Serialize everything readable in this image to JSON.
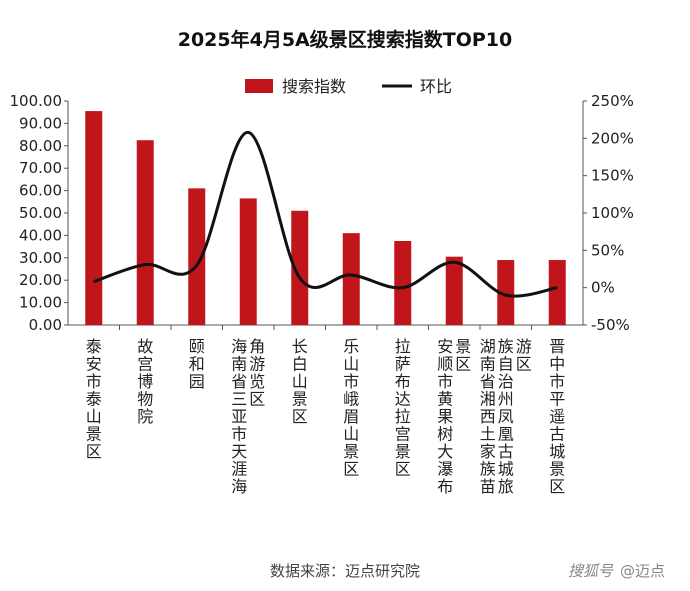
{
  "chart_data": {
    "type": "bar",
    "title": "2025年4月5A级景区搜索指数TOP10",
    "categories": [
      "泰安市泰山景区",
      "故宫博物院",
      "颐和园",
      "海南省三亚市天涯海角游览区",
      "长白山景区",
      "乐山市峨眉山景区",
      "拉萨布达拉宫景区",
      "安顺市黄果树大瀑布景区",
      "湖南省湘西土家族苗族自治州凤凰古城旅游区",
      "晋中市平遥古城景区"
    ],
    "category_lines": [
      [
        "泰安市泰山景区"
      ],
      [
        "故宫博物院"
      ],
      [
        "颐和园"
      ],
      [
        "海南省三亚市天涯海",
        "角游览区"
      ],
      [
        "长白山景区"
      ],
      [
        "乐山市峨眉山景区"
      ],
      [
        "拉萨布达拉宫景区"
      ],
      [
        "安顺市黄果树大瀑布",
        "景区"
      ],
      [
        "湖南省湘西土家族苗",
        "族自治州凤凰古城旅",
        "游区"
      ],
      [
        "晋中市平遥古城景区"
      ]
    ],
    "series": [
      {
        "name": "搜索指数",
        "type": "bar",
        "axis": "left",
        "color": "#c0161b",
        "values": [
          95.5,
          82.5,
          61.0,
          56.5,
          51.0,
          41.0,
          37.5,
          30.5,
          29.0,
          29.0
        ]
      },
      {
        "name": "环比",
        "type": "line",
        "axis": "right",
        "color": "#111111",
        "values": [
          8,
          31,
          30,
          208,
          13,
          17,
          0,
          34,
          -10,
          0
        ]
      }
    ],
    "y_left": {
      "min": 0,
      "max": 100,
      "ticks": [
        "0.00",
        "10.00",
        "20.00",
        "30.00",
        "40.00",
        "50.00",
        "60.00",
        "70.00",
        "80.00",
        "90.00",
        "100.00"
      ]
    },
    "y_right": {
      "min": -50,
      "max": 250,
      "ticks": [
        "-50%",
        "0%",
        "50%",
        "100%",
        "150%",
        "200%",
        "250%"
      ]
    },
    "legend_position": "top-center",
    "grid": false
  },
  "footer": {
    "source": "数据来源：迈点研究院",
    "watermark_brand": "搜狐号",
    "watermark_user": "@迈点"
  }
}
